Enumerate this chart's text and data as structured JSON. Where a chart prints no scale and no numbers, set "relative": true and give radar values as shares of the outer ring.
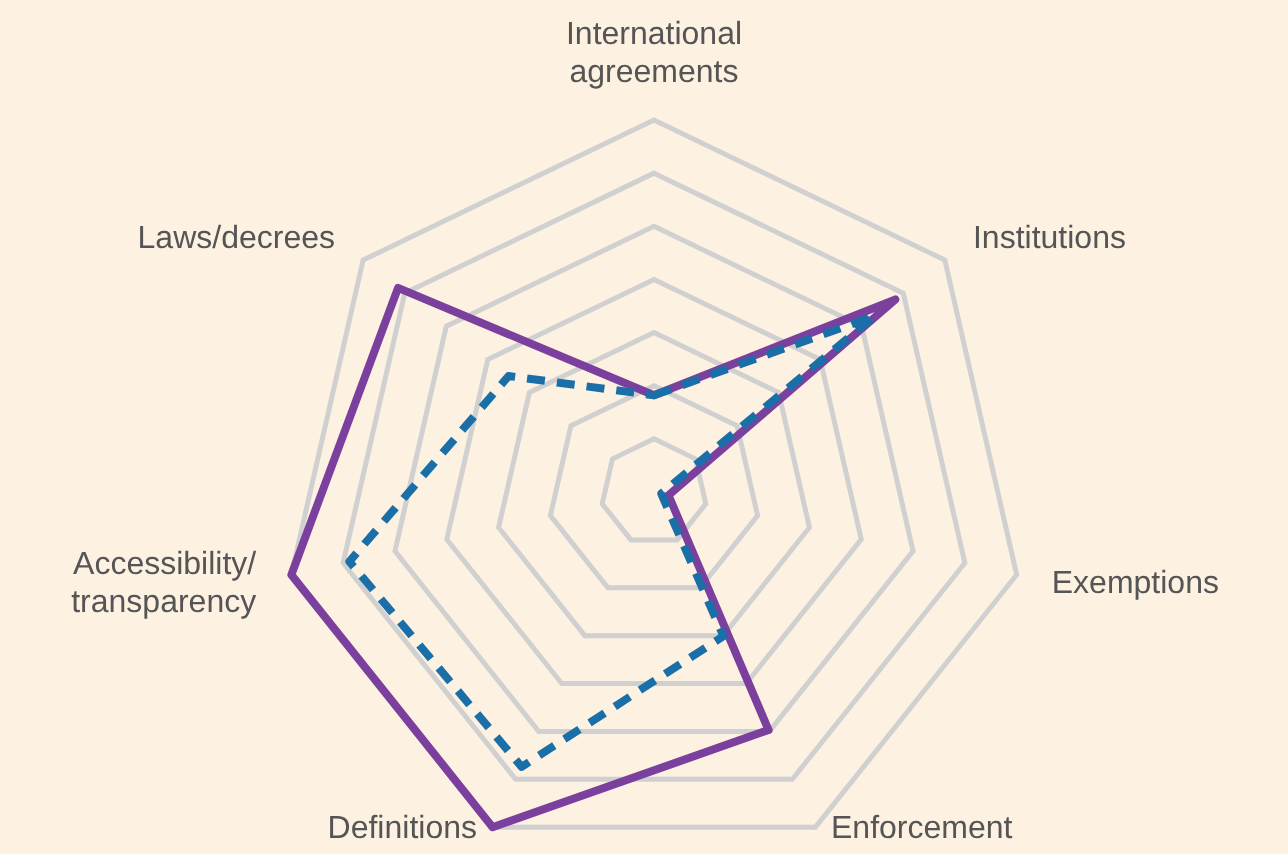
{
  "chart_data": {
    "type": "radar",
    "relative": true,
    "marker": "none",
    "categories": [
      "International\nagreements",
      "Institutions",
      "Exemptions",
      "Enforcement",
      "Definitions",
      "Accessibility/\ntransparency",
      "Laws/decrees"
    ],
    "series": [
      {
        "color": "#7b3f9e",
        "line_style": "solid",
        "values": [
          0.26,
          0.83,
          0.04,
          0.71,
          1.0,
          1.0,
          0.88
        ]
      },
      {
        "color": "#1a6fa8",
        "line_style": "dashed",
        "values": [
          0.26,
          0.76,
          0.02,
          0.43,
          0.82,
          0.84,
          0.5
        ]
      }
    ]
  }
}
